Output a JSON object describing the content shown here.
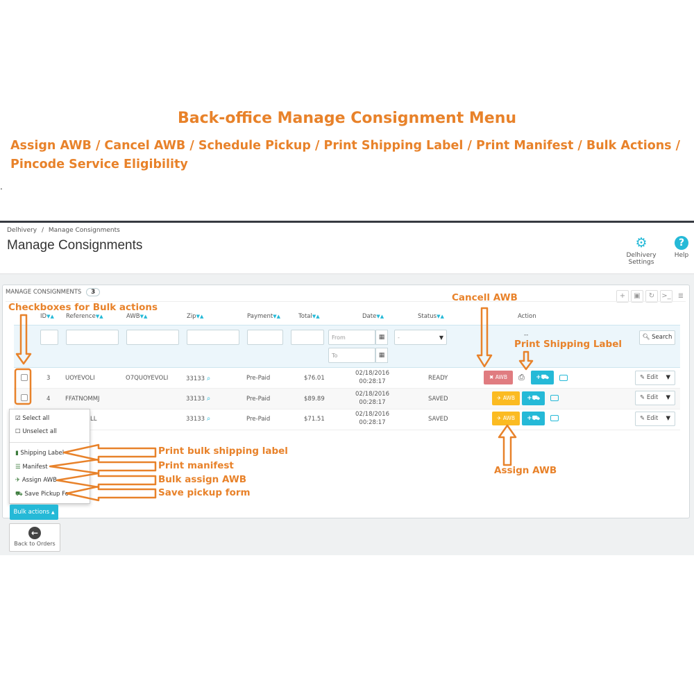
{
  "header": {
    "title": "Back-office Manage Consignment Menu",
    "subtitle": "Assign AWB / Cancel AWB / Schedule Pickup / Print Shipping Label / Print Manifest / Bulk Actions / Pincode Service Eligibility"
  },
  "breadcrumb": {
    "root": "Delhivery",
    "sep": "/",
    "current": "Manage Consignments"
  },
  "page_title": "Manage Consignments",
  "toolbar": [
    {
      "label": "Delhivery Settings",
      "icon": "gear-icon"
    },
    {
      "label": "Help",
      "icon": "help-icon"
    }
  ],
  "panel": {
    "title": "Manage Consignments",
    "count": "3"
  },
  "columns": [
    "ID",
    "Reference",
    "AWB",
    "Zip",
    "Payment",
    "Total",
    "Date",
    "Status",
    "Action"
  ],
  "filters": {
    "date_from_placeholder": "From",
    "date_to_placeholder": "To",
    "status_value": "-",
    "action_value": "--",
    "search_label": "Search"
  },
  "rows": [
    {
      "id": "3",
      "reference": "UOYEVOLI",
      "awb": "O7QUOYEVOLI",
      "zip": "33133",
      "payment": "Pre-Paid",
      "total": "$76.01",
      "date": "02/18/2016",
      "time": "00:28:17",
      "status": "READY",
      "awb_btn": "AWB",
      "edit": "Edit"
    },
    {
      "id": "4",
      "reference": "FFATNOMMJ",
      "awb": "",
      "zip": "33133",
      "payment": "Pre-Paid",
      "total": "$89.89",
      "date": "02/18/2016",
      "time": "00:28:17",
      "status": "SAVED",
      "awb_btn": "AWB",
      "edit": "Edit"
    },
    {
      "id": "",
      "reference": "LL",
      "awb": "",
      "zip": "33133",
      "payment": "Pre-Paid",
      "total": "$71.51",
      "date": "02/18/2016",
      "time": "00:28:17",
      "status": "SAVED",
      "awb_btn": "AWB",
      "edit": "Edit"
    }
  ],
  "bulk_menu": {
    "select_all": "Select all",
    "unselect_all": "Unselect all",
    "shipping_label": "Shipping Label",
    "manifest": "Manifest",
    "assign_awb": "Assign AWB",
    "save_pickup": "Save Pickup Fo"
  },
  "bulk_button": "Bulk actions",
  "back_button": "Back to Orders",
  "annotations": {
    "checkboxes": "Checkboxes for Bulk actions",
    "cancel_awb": "Cancell AWB",
    "print_label": "Print Shipping Label",
    "bulk_label": "Print bulk shipping label",
    "manifest": "Print manifest",
    "bulk_assign": "Bulk assign AWB",
    "pickup": "Save pickup form",
    "assign_awb": "Assign AWB"
  },
  "colors": {
    "accent": "#25b9d7",
    "annotation": "#e8822a",
    "cancel": "#e07c80",
    "assign": "#fbbb22"
  }
}
